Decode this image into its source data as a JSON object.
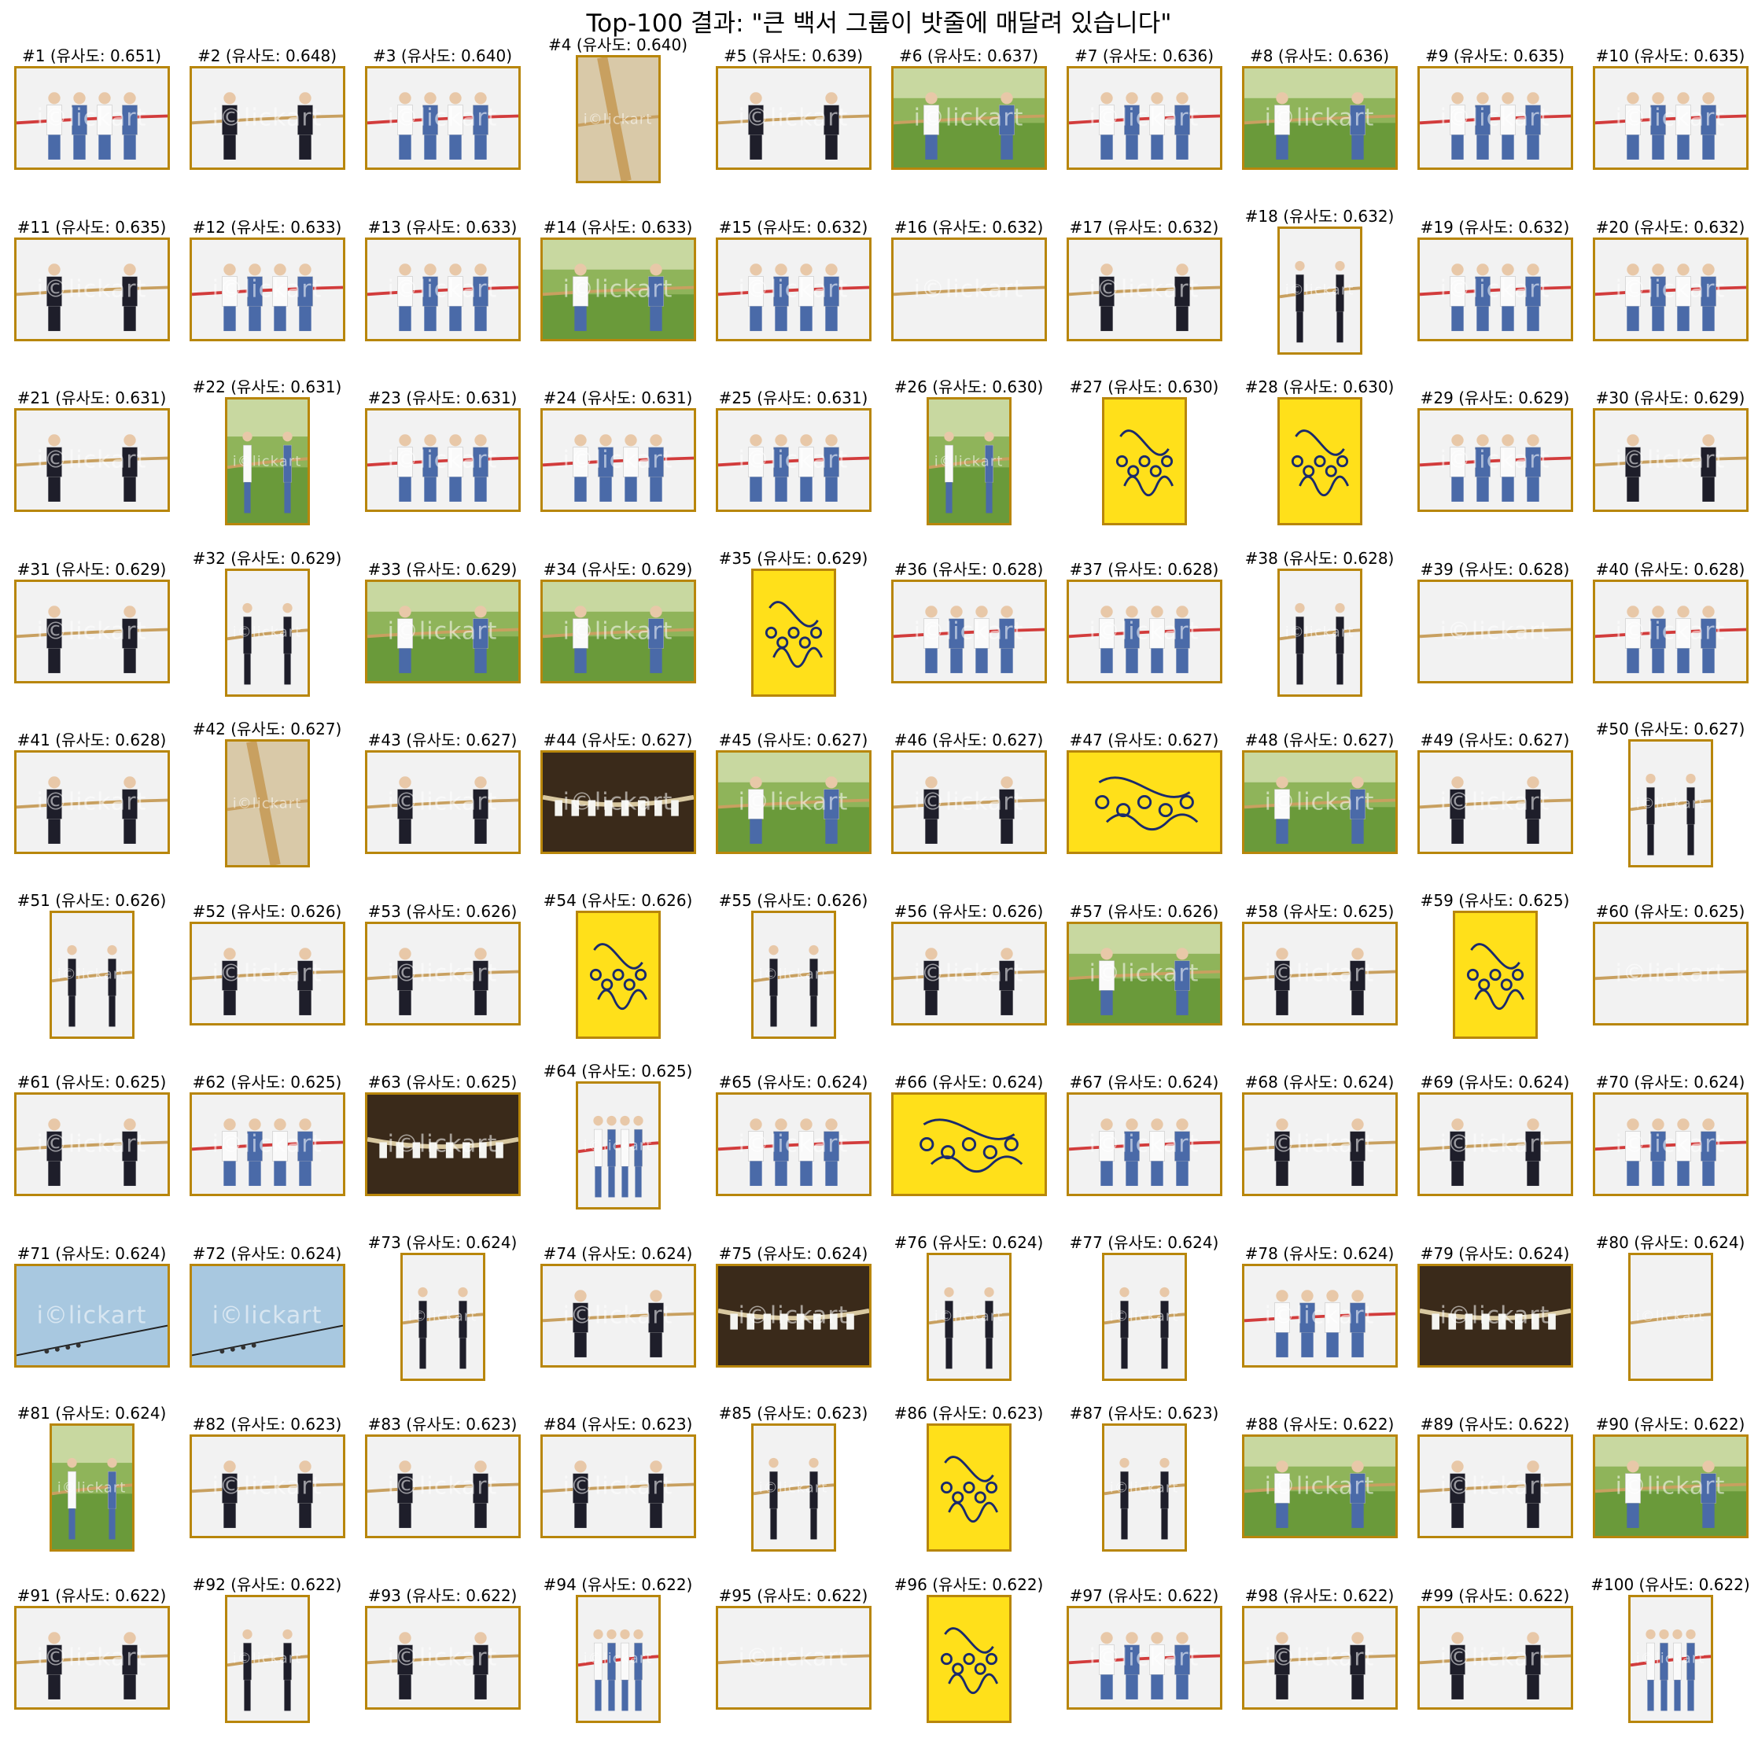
{
  "title": "Top-100 결과: \"큰 백서 그룹이 밧줄에 매달려 있습니다\"",
  "caption_prefix": "#",
  "caption_label": "유사도",
  "watermark": "i©lickart",
  "results": [
    {
      "rank": "#1",
      "score": "0.651",
      "kind": "kids_white",
      "orient": "land"
    },
    {
      "rank": "#2",
      "score": "0.648",
      "kind": "business",
      "orient": "land"
    },
    {
      "rank": "#3",
      "score": "0.640",
      "kind": "kids_white",
      "orient": "land"
    },
    {
      "rank": "#4",
      "score": "0.640",
      "kind": "closeup",
      "orient": "port"
    },
    {
      "rank": "#5",
      "score": "0.639",
      "kind": "business",
      "orient": "land"
    },
    {
      "rank": "#6",
      "score": "0.637",
      "kind": "outdoor",
      "orient": "land"
    },
    {
      "rank": "#7",
      "score": "0.636",
      "kind": "kids_white",
      "orient": "land"
    },
    {
      "rank": "#8",
      "score": "0.636",
      "kind": "outdoor",
      "orient": "land"
    },
    {
      "rank": "#9",
      "score": "0.635",
      "kind": "kids_white",
      "orient": "land"
    },
    {
      "rank": "#10",
      "score": "0.635",
      "kind": "kids_white",
      "orient": "land"
    },
    {
      "rank": "#11",
      "score": "0.635",
      "kind": "business",
      "orient": "land"
    },
    {
      "rank": "#12",
      "score": "0.633",
      "kind": "kids_white",
      "orient": "land"
    },
    {
      "rank": "#13",
      "score": "0.633",
      "kind": "kids_white",
      "orient": "land"
    },
    {
      "rank": "#14",
      "score": "0.633",
      "kind": "outdoor",
      "orient": "land"
    },
    {
      "rank": "#15",
      "score": "0.632",
      "kind": "kids_white",
      "orient": "land"
    },
    {
      "rank": "#16",
      "score": "0.632",
      "kind": "white",
      "orient": "land"
    },
    {
      "rank": "#17",
      "score": "0.632",
      "kind": "business",
      "orient": "land"
    },
    {
      "rank": "#18",
      "score": "0.632",
      "kind": "business",
      "orient": "port"
    },
    {
      "rank": "#19",
      "score": "0.632",
      "kind": "kids_white",
      "orient": "land"
    },
    {
      "rank": "#20",
      "score": "0.632",
      "kind": "kids_white",
      "orient": "land"
    },
    {
      "rank": "#21",
      "score": "0.631",
      "kind": "business",
      "orient": "land"
    },
    {
      "rank": "#22",
      "score": "0.631",
      "kind": "outdoor",
      "orient": "port"
    },
    {
      "rank": "#23",
      "score": "0.631",
      "kind": "kids_white",
      "orient": "land"
    },
    {
      "rank": "#24",
      "score": "0.631",
      "kind": "kids_white",
      "orient": "land"
    },
    {
      "rank": "#25",
      "score": "0.631",
      "kind": "kids_white",
      "orient": "land"
    },
    {
      "rank": "#26",
      "score": "0.630",
      "kind": "outdoor",
      "orient": "port"
    },
    {
      "rank": "#27",
      "score": "0.630",
      "kind": "yellow",
      "orient": "port"
    },
    {
      "rank": "#28",
      "score": "0.630",
      "kind": "yellow",
      "orient": "port"
    },
    {
      "rank": "#29",
      "score": "0.629",
      "kind": "kids_white",
      "orient": "land"
    },
    {
      "rank": "#30",
      "score": "0.629",
      "kind": "business",
      "orient": "land"
    },
    {
      "rank": "#31",
      "score": "0.629",
      "kind": "business",
      "orient": "land"
    },
    {
      "rank": "#32",
      "score": "0.629",
      "kind": "business",
      "orient": "port"
    },
    {
      "rank": "#33",
      "score": "0.629",
      "kind": "outdoor",
      "orient": "land"
    },
    {
      "rank": "#34",
      "score": "0.629",
      "kind": "outdoor",
      "orient": "land"
    },
    {
      "rank": "#35",
      "score": "0.629",
      "kind": "yellow",
      "orient": "port"
    },
    {
      "rank": "#36",
      "score": "0.628",
      "kind": "kids_white",
      "orient": "land"
    },
    {
      "rank": "#37",
      "score": "0.628",
      "kind": "kids_white",
      "orient": "land"
    },
    {
      "rank": "#38",
      "score": "0.628",
      "kind": "business",
      "orient": "port"
    },
    {
      "rank": "#39",
      "score": "0.628",
      "kind": "white",
      "orient": "land"
    },
    {
      "rank": "#40",
      "score": "0.628",
      "kind": "kids_white",
      "orient": "land"
    },
    {
      "rank": "#41",
      "score": "0.628",
      "kind": "business",
      "orient": "land"
    },
    {
      "rank": "#42",
      "score": "0.627",
      "kind": "closeup",
      "orient": "port"
    },
    {
      "rank": "#43",
      "score": "0.627",
      "kind": "business",
      "orient": "land"
    },
    {
      "rank": "#44",
      "score": "0.627",
      "kind": "dark",
      "orient": "land"
    },
    {
      "rank": "#45",
      "score": "0.627",
      "kind": "outdoor",
      "orient": "land"
    },
    {
      "rank": "#46",
      "score": "0.627",
      "kind": "business",
      "orient": "land"
    },
    {
      "rank": "#47",
      "score": "0.627",
      "kind": "yellow",
      "orient": "land"
    },
    {
      "rank": "#48",
      "score": "0.627",
      "kind": "outdoor",
      "orient": "land"
    },
    {
      "rank": "#49",
      "score": "0.627",
      "kind": "business",
      "orient": "land"
    },
    {
      "rank": "#50",
      "score": "0.627",
      "kind": "business",
      "orient": "port"
    },
    {
      "rank": "#51",
      "score": "0.626",
      "kind": "business",
      "orient": "port"
    },
    {
      "rank": "#52",
      "score": "0.626",
      "kind": "business",
      "orient": "land"
    },
    {
      "rank": "#53",
      "score": "0.626",
      "kind": "business",
      "orient": "land"
    },
    {
      "rank": "#54",
      "score": "0.626",
      "kind": "yellow",
      "orient": "port"
    },
    {
      "rank": "#55",
      "score": "0.626",
      "kind": "business",
      "orient": "port"
    },
    {
      "rank": "#56",
      "score": "0.626",
      "kind": "business",
      "orient": "land"
    },
    {
      "rank": "#57",
      "score": "0.626",
      "kind": "outdoor",
      "orient": "land"
    },
    {
      "rank": "#58",
      "score": "0.625",
      "kind": "business",
      "orient": "land"
    },
    {
      "rank": "#59",
      "score": "0.625",
      "kind": "yellow",
      "orient": "port"
    },
    {
      "rank": "#60",
      "score": "0.625",
      "kind": "white",
      "orient": "land"
    },
    {
      "rank": "#61",
      "score": "0.625",
      "kind": "business",
      "orient": "land"
    },
    {
      "rank": "#62",
      "score": "0.625",
      "kind": "kids_white",
      "orient": "land"
    },
    {
      "rank": "#63",
      "score": "0.625",
      "kind": "dark",
      "orient": "land"
    },
    {
      "rank": "#64",
      "score": "0.625",
      "kind": "kids_white",
      "orient": "port"
    },
    {
      "rank": "#65",
      "score": "0.624",
      "kind": "kids_white",
      "orient": "land"
    },
    {
      "rank": "#66",
      "score": "0.624",
      "kind": "yellow",
      "orient": "land"
    },
    {
      "rank": "#67",
      "score": "0.624",
      "kind": "kids_white",
      "orient": "land"
    },
    {
      "rank": "#68",
      "score": "0.624",
      "kind": "business",
      "orient": "land"
    },
    {
      "rank": "#69",
      "score": "0.624",
      "kind": "business",
      "orient": "land"
    },
    {
      "rank": "#70",
      "score": "0.624",
      "kind": "kids_white",
      "orient": "land"
    },
    {
      "rank": "#71",
      "score": "0.624",
      "kind": "sky",
      "orient": "land"
    },
    {
      "rank": "#72",
      "score": "0.624",
      "kind": "sky",
      "orient": "land"
    },
    {
      "rank": "#73",
      "score": "0.624",
      "kind": "business",
      "orient": "port"
    },
    {
      "rank": "#74",
      "score": "0.624",
      "kind": "business",
      "orient": "land"
    },
    {
      "rank": "#75",
      "score": "0.624",
      "kind": "dark",
      "orient": "land"
    },
    {
      "rank": "#76",
      "score": "0.624",
      "kind": "business",
      "orient": "port"
    },
    {
      "rank": "#77",
      "score": "0.624",
      "kind": "business",
      "orient": "port"
    },
    {
      "rank": "#78",
      "score": "0.624",
      "kind": "kids_white",
      "orient": "land"
    },
    {
      "rank": "#79",
      "score": "0.624",
      "kind": "dark",
      "orient": "land"
    },
    {
      "rank": "#80",
      "score": "0.624",
      "kind": "white",
      "orient": "port"
    },
    {
      "rank": "#81",
      "score": "0.624",
      "kind": "outdoor",
      "orient": "port"
    },
    {
      "rank": "#82",
      "score": "0.623",
      "kind": "business",
      "orient": "land"
    },
    {
      "rank": "#83",
      "score": "0.623",
      "kind": "business",
      "orient": "land"
    },
    {
      "rank": "#84",
      "score": "0.623",
      "kind": "business",
      "orient": "land"
    },
    {
      "rank": "#85",
      "score": "0.623",
      "kind": "business",
      "orient": "port"
    },
    {
      "rank": "#86",
      "score": "0.623",
      "kind": "yellow",
      "orient": "port"
    },
    {
      "rank": "#87",
      "score": "0.623",
      "kind": "business",
      "orient": "port"
    },
    {
      "rank": "#88",
      "score": "0.622",
      "kind": "outdoor",
      "orient": "land"
    },
    {
      "rank": "#89",
      "score": "0.622",
      "kind": "business",
      "orient": "land"
    },
    {
      "rank": "#90",
      "score": "0.622",
      "kind": "outdoor",
      "orient": "land"
    },
    {
      "rank": "#91",
      "score": "0.622",
      "kind": "business",
      "orient": "land"
    },
    {
      "rank": "#92",
      "score": "0.622",
      "kind": "business",
      "orient": "port"
    },
    {
      "rank": "#93",
      "score": "0.622",
      "kind": "business",
      "orient": "land"
    },
    {
      "rank": "#94",
      "score": "0.622",
      "kind": "kids_white",
      "orient": "port"
    },
    {
      "rank": "#95",
      "score": "0.622",
      "kind": "white",
      "orient": "land"
    },
    {
      "rank": "#96",
      "score": "0.622",
      "kind": "yellow",
      "orient": "port"
    },
    {
      "rank": "#97",
      "score": "0.622",
      "kind": "kids_white",
      "orient": "land"
    },
    {
      "rank": "#98",
      "score": "0.622",
      "kind": "business",
      "orient": "land"
    },
    {
      "rank": "#99",
      "score": "0.622",
      "kind": "business",
      "orient": "land"
    },
    {
      "rank": "#100",
      "score": "0.622",
      "kind": "kids_white",
      "orient": "port"
    }
  ],
  "colors": {
    "frame": "#b8860b",
    "yellow_bg": "#ffe01a",
    "doodle": "#1a2a6c",
    "rope": "#c8a060",
    "suit": "#1e1e2a",
    "grass": "#6a9a3a",
    "sky": "#a8c8e0",
    "dark_bg": "#3a2a1a"
  }
}
